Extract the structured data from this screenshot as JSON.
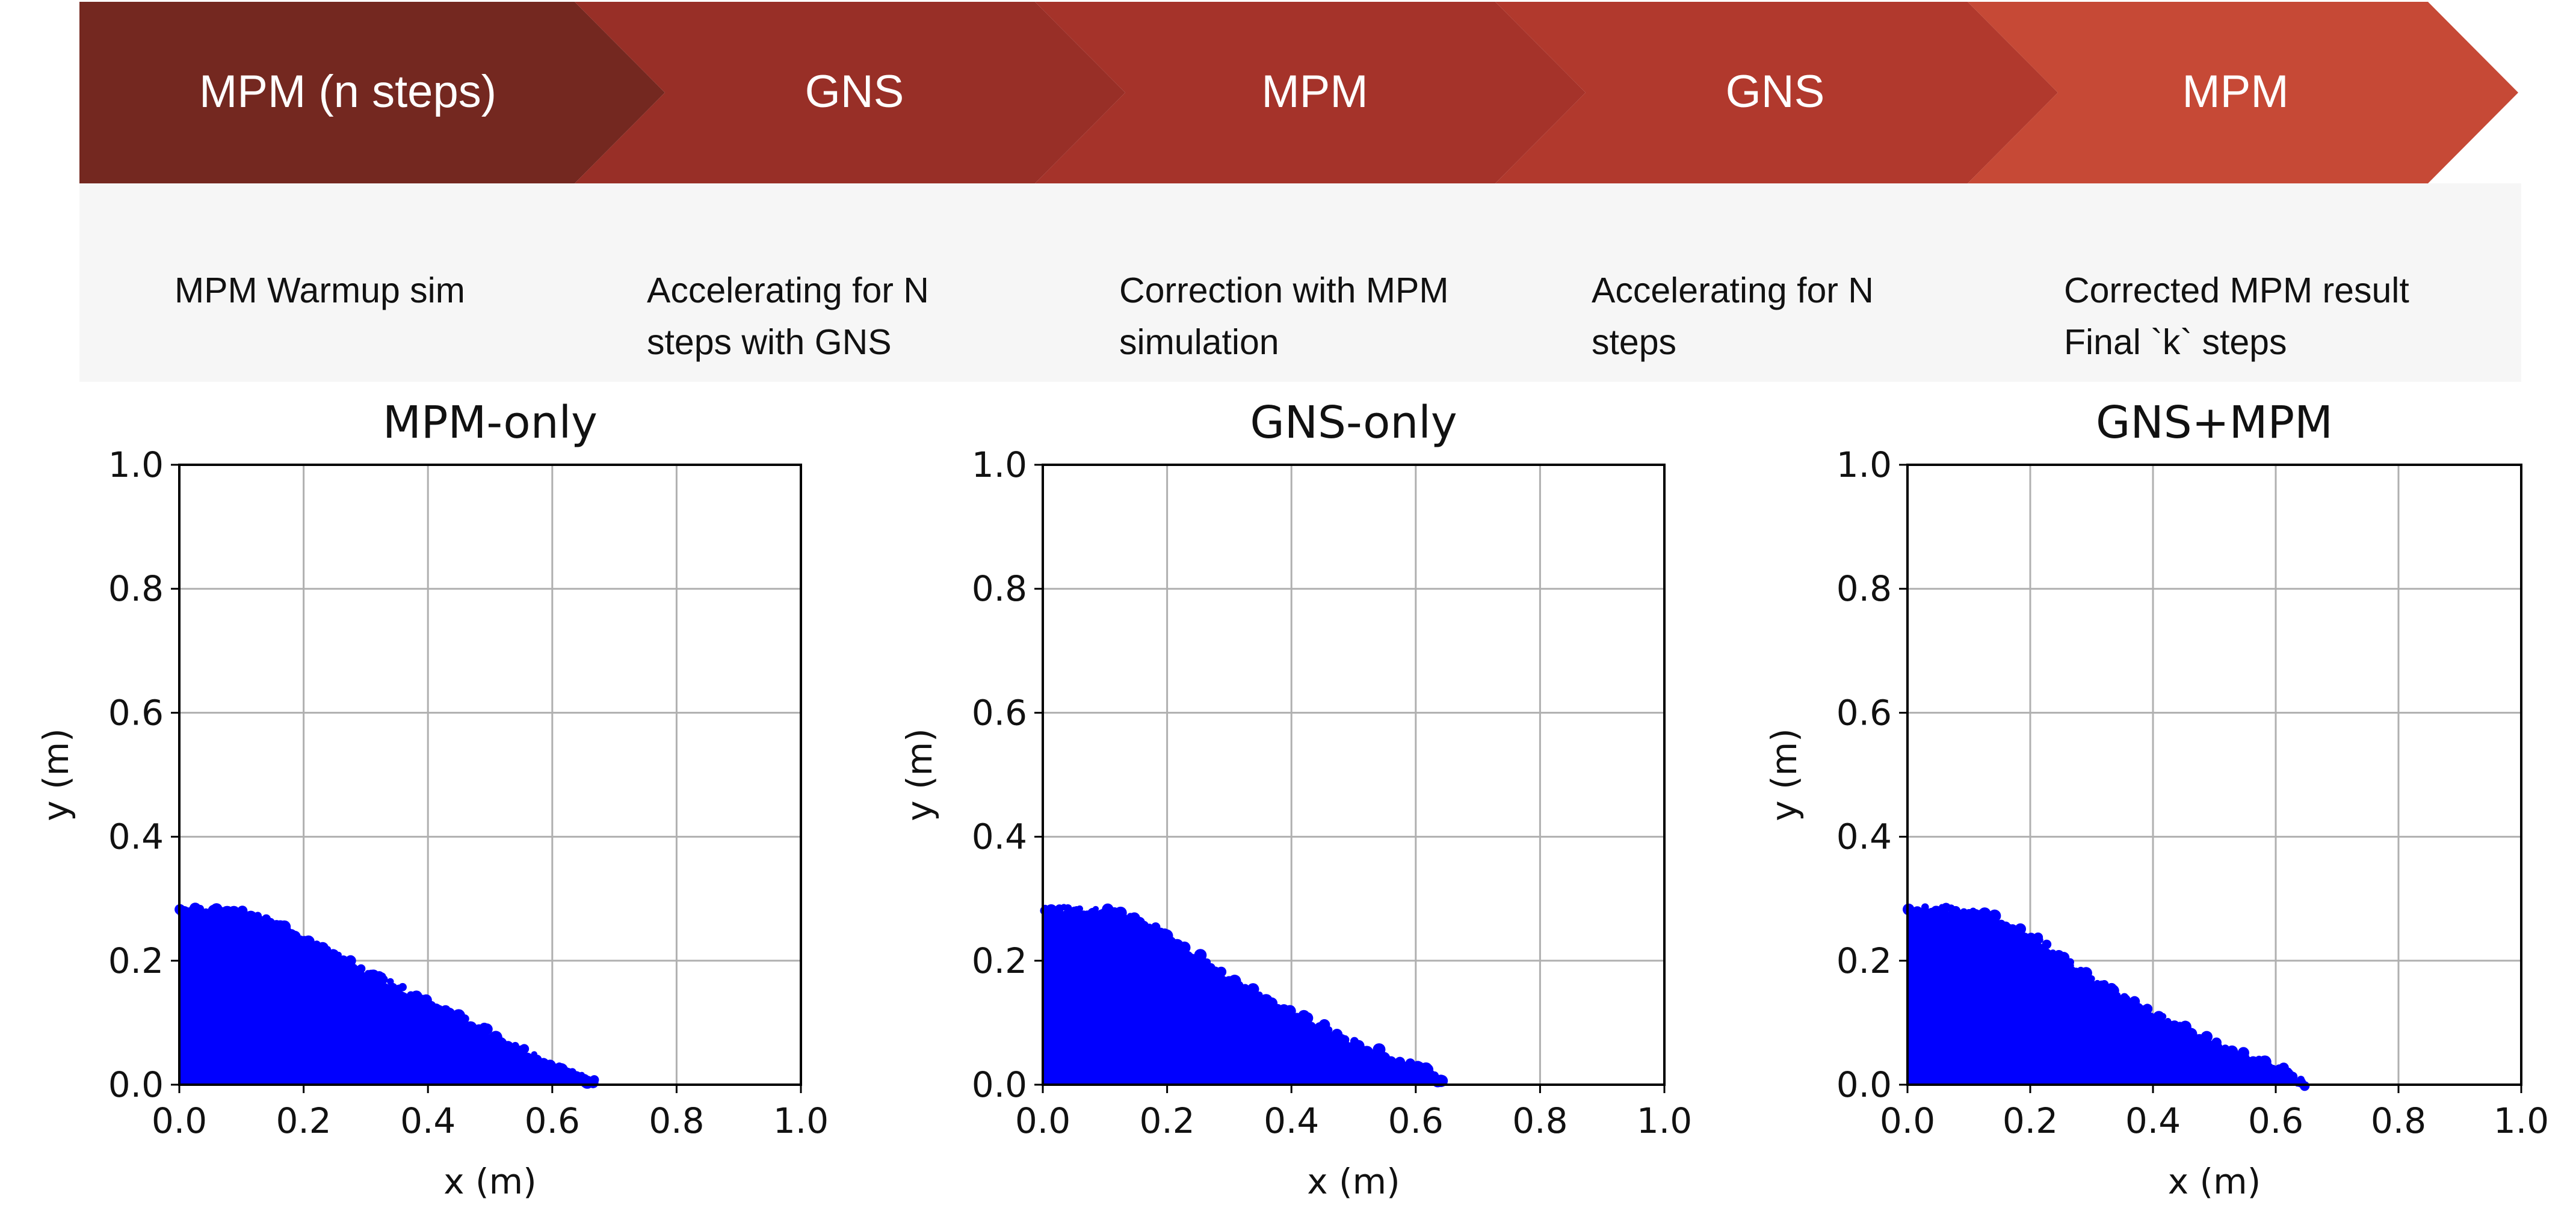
{
  "pipeline": {
    "stages": [
      {
        "label": "MPM (n steps)",
        "color": "#742820",
        "desc": [
          "MPM Warmup sim"
        ]
      },
      {
        "label": "GNS",
        "color": "#982f27",
        "desc": [
          "Accelerating for N",
          "steps with GNS"
        ]
      },
      {
        "label": "MPM",
        "color": "#a5332a",
        "desc": [
          "Correction with MPM",
          "simulation"
        ]
      },
      {
        "label": "GNS",
        "color": "#b1392d",
        "desc": [
          "Accelerating for N",
          "steps"
        ]
      },
      {
        "label": "MPM",
        "color": "#c64936",
        "desc": [
          "Corrected MPM result",
          "Final `k` steps"
        ]
      }
    ],
    "panel_bg": "#f6f6f6",
    "label_color": "#ffffff"
  },
  "chart_data": [
    {
      "type": "scatter",
      "title": "MPM-only",
      "xlabel": "x (m)",
      "ylabel": "y (m)",
      "xlim": [
        0.0,
        1.0
      ],
      "ylim": [
        0.0,
        1.0
      ],
      "xticks": [
        "0.0",
        "0.2",
        "0.4",
        "0.6",
        "0.8",
        "1.0"
      ],
      "yticks": [
        "0.0",
        "0.2",
        "0.4",
        "0.6",
        "0.8",
        "1.0"
      ],
      "grid": true,
      "color": "#0000ff",
      "profile": {
        "x": [
          0.0,
          0.05,
          0.1,
          0.15,
          0.2,
          0.25,
          0.3,
          0.35,
          0.4,
          0.45,
          0.5,
          0.55,
          0.6,
          0.64,
          0.67
        ],
        "y": [
          0.28,
          0.28,
          0.275,
          0.26,
          0.235,
          0.21,
          0.18,
          0.155,
          0.13,
          0.105,
          0.08,
          0.055,
          0.03,
          0.012,
          0.0
        ]
      }
    },
    {
      "type": "scatter",
      "title": "GNS-only",
      "xlabel": "x (m)",
      "ylabel": "y (m)",
      "xlim": [
        0.0,
        1.0
      ],
      "ylim": [
        0.0,
        1.0
      ],
      "xticks": [
        "0.0",
        "0.2",
        "0.4",
        "0.6",
        "0.8",
        "1.0"
      ],
      "yticks": [
        "0.0",
        "0.2",
        "0.4",
        "0.6",
        "0.8",
        "1.0"
      ],
      "grid": true,
      "color": "#0000ff",
      "profile": {
        "x": [
          0.0,
          0.05,
          0.1,
          0.15,
          0.2,
          0.25,
          0.3,
          0.35,
          0.4,
          0.45,
          0.5,
          0.55,
          0.6,
          0.62,
          0.65
        ],
        "y": [
          0.28,
          0.28,
          0.278,
          0.265,
          0.24,
          0.205,
          0.17,
          0.14,
          0.115,
          0.09,
          0.065,
          0.045,
          0.025,
          0.018,
          0.0
        ]
      }
    },
    {
      "type": "scatter",
      "title": "GNS+MPM",
      "xlabel": "x (m)",
      "ylabel": "y (m)",
      "xlim": [
        0.0,
        1.0
      ],
      "ylim": [
        0.0,
        1.0
      ],
      "xticks": [
        "0.0",
        "0.2",
        "0.4",
        "0.6",
        "0.8",
        "1.0"
      ],
      "yticks": [
        "0.0",
        "0.2",
        "0.4",
        "0.6",
        "0.8",
        "1.0"
      ],
      "grid": true,
      "color": "#0000ff",
      "profile": {
        "x": [
          0.0,
          0.05,
          0.1,
          0.15,
          0.2,
          0.25,
          0.3,
          0.35,
          0.4,
          0.45,
          0.5,
          0.55,
          0.6,
          0.62,
          0.65
        ],
        "y": [
          0.28,
          0.28,
          0.278,
          0.265,
          0.24,
          0.205,
          0.17,
          0.14,
          0.115,
          0.09,
          0.065,
          0.045,
          0.025,
          0.018,
          0.0
        ]
      }
    }
  ]
}
